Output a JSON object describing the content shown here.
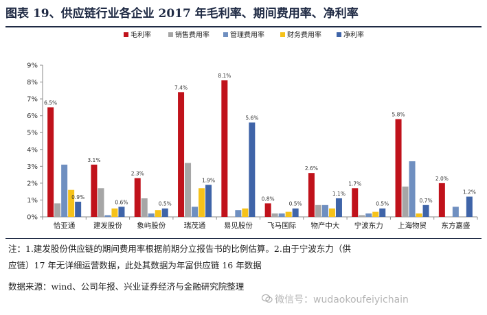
{
  "title": "图表 19、供应链行业各企业 2017 年毛利率、期间费用率、净利率",
  "notes": {
    "line1": "注：1.建发股份供应链的期间费用率根据前期分立报告书的比例估算。2.由于宁波东力（供",
    "line2": "应链）17 年无详细运营数据，此处其数据为年富供应链 16 年数据",
    "source": "数据来源：wind、公司年报、兴业证券经济与金融研究院整理"
  },
  "watermark": "微信号：wudaokoufeiyichain",
  "colors": {
    "毛利率": "#c0121b",
    "销售费用率": "#a6a6a6",
    "管理费用率": "#6f8fc0",
    "财务费用率": "#f6c21a",
    "净利率": "#3f64a8"
  },
  "chart_data": {
    "type": "bar",
    "categories": [
      "恰亚通",
      "建发股份",
      "象屿股份",
      "瑞茂通",
      "易见股份",
      "飞马国际",
      "物产中大",
      "宁波东力",
      "上海物贸",
      "东方嘉盛"
    ],
    "series": [
      {
        "name": "毛利率",
        "values": [
          6.5,
          3.1,
          2.3,
          7.4,
          8.1,
          0.8,
          2.6,
          1.7,
          5.8,
          2.0
        ]
      },
      {
        "name": "销售费用率",
        "values": [
          0.8,
          1.7,
          1.1,
          3.2,
          0.0,
          0.2,
          0.7,
          0.1,
          1.8,
          0.0
        ]
      },
      {
        "name": "管理费用率",
        "values": [
          3.1,
          0.1,
          0.2,
          0.6,
          0.4,
          0.2,
          0.7,
          0.2,
          3.3,
          0.6
        ]
      },
      {
        "name": "财务费用率",
        "values": [
          1.6,
          0.5,
          0.4,
          1.7,
          0.5,
          0.3,
          0.5,
          0.3,
          0.2,
          0.0
        ]
      },
      {
        "name": "净利率",
        "values": [
          0.9,
          0.6,
          0.5,
          1.9,
          5.6,
          0.5,
          1.1,
          0.5,
          0.7,
          1.2
        ]
      }
    ],
    "data_labels": {
      "毛利率": [
        "6.5%",
        "3.1%",
        "2.3%",
        "7.4%",
        "8.1%",
        "0.8%",
        "2.6%",
        "1.7%",
        "5.8%",
        "2.0%"
      ],
      "净利率": [
        "0.9%",
        "0.6%",
        "0.5%",
        "1.9%",
        "5.6%",
        "0.5%",
        "1.1%",
        "0.5%",
        "0.7%",
        "1.2%"
      ]
    },
    "yticks": [
      "0%",
      "1%",
      "2%",
      "3%",
      "4%",
      "5%",
      "6%",
      "7%",
      "8%",
      "9%"
    ],
    "ylim": [
      0,
      9
    ],
    "legend_position": "top-right",
    "grid": false
  }
}
